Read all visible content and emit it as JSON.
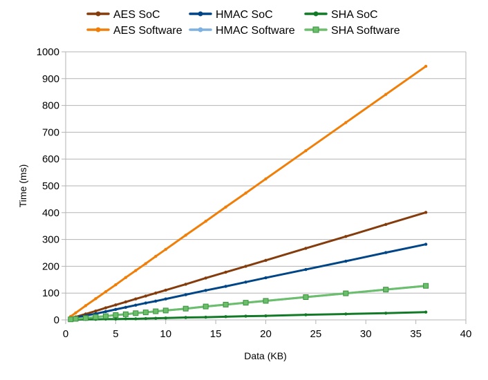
{
  "chart_data": {
    "type": "line",
    "xlabel": "Data (KB)",
    "ylabel": "Time (ms)",
    "xlim": [
      0,
      40
    ],
    "ylim": [
      0,
      1000
    ],
    "x_ticks": [
      0,
      5,
      10,
      15,
      20,
      25,
      30,
      35,
      40
    ],
    "y_ticks": [
      0,
      100,
      200,
      300,
      400,
      500,
      600,
      700,
      800,
      900,
      1000
    ],
    "grid": "horizontal",
    "legend_position": "top",
    "series": [
      {
        "name": "AES SoC",
        "color": "#843c0c",
        "marker": "dot",
        "x": [
          0.5,
          1,
          2,
          3,
          4,
          5,
          6,
          7,
          8,
          9,
          10,
          12,
          14,
          16,
          18,
          20,
          24,
          28,
          32,
          36
        ],
        "y": [
          6,
          11,
          22,
          33,
          45,
          56,
          67,
          78,
          89,
          100,
          111,
          133,
          156,
          178,
          200,
          222,
          267,
          311,
          356,
          401
        ]
      },
      {
        "name": "AES Software",
        "color": "#f07f09",
        "marker": "dot",
        "x": [
          0.5,
          1,
          2,
          3,
          4,
          5,
          6,
          7,
          8,
          9,
          10,
          12,
          14,
          16,
          18,
          20,
          24,
          28,
          32,
          36
        ],
        "y": [
          13,
          26,
          53,
          79,
          105,
          131,
          158,
          184,
          210,
          237,
          263,
          316,
          368,
          421,
          473,
          526,
          631,
          736,
          841,
          946
        ]
      },
      {
        "name": "HMAC SoC",
        "color": "#004586",
        "marker": "dot",
        "x": [
          0.5,
          1,
          2,
          3,
          4,
          5,
          6,
          7,
          8,
          9,
          10,
          12,
          14,
          16,
          18,
          20,
          24,
          28,
          32,
          36
        ],
        "y": [
          4,
          8,
          16,
          23,
          31,
          39,
          47,
          55,
          63,
          70,
          78,
          94,
          110,
          125,
          141,
          157,
          188,
          219,
          251,
          282
        ]
      },
      {
        "name": "HMAC Software",
        "color": "#7eb0e0",
        "marker": "dot",
        "x": [
          0.5,
          1,
          2,
          3,
          4,
          5,
          6,
          7,
          8,
          9,
          10,
          12,
          14,
          16,
          18,
          20,
          24,
          28,
          32,
          36
        ],
        "y": [
          2,
          4,
          7,
          11,
          14,
          18,
          21,
          25,
          28,
          32,
          35,
          42,
          50,
          57,
          64,
          71,
          85,
          99,
          113,
          127
        ]
      },
      {
        "name": "SHA SoC",
        "color": "#127a26",
        "marker": "dot",
        "x": [
          0.5,
          1,
          2,
          3,
          4,
          5,
          6,
          7,
          8,
          9,
          10,
          12,
          14,
          16,
          18,
          20,
          24,
          28,
          32,
          36
        ],
        "y": [
          1,
          1,
          2,
          2,
          3,
          3,
          4,
          4,
          5,
          6,
          7,
          9,
          10,
          12,
          14,
          15,
          19,
          22,
          25,
          29
        ]
      },
      {
        "name": "SHA Software",
        "color": "#6cbf6a",
        "marker": "square",
        "x": [
          0.5,
          1,
          2,
          3,
          4,
          5,
          6,
          7,
          8,
          9,
          10,
          12,
          14,
          16,
          18,
          20,
          24,
          28,
          32,
          36
        ],
        "y": [
          2,
          4,
          7,
          11,
          14,
          18,
          21,
          25,
          28,
          32,
          35,
          42,
          50,
          57,
          64,
          71,
          85,
          99,
          113,
          127
        ]
      }
    ]
  }
}
